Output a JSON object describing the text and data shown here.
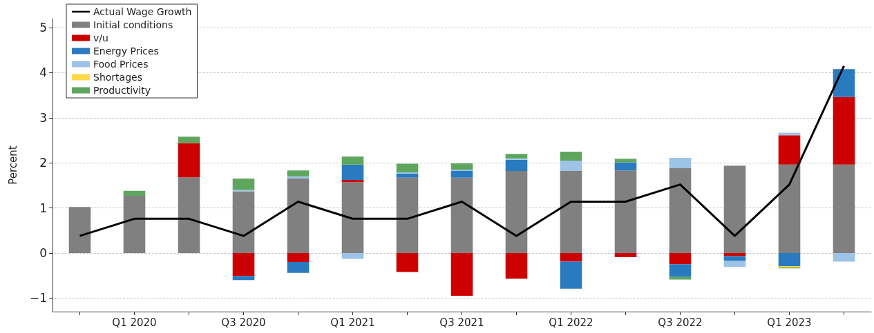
{
  "chart_data": {
    "type": "bar",
    "stacked": true,
    "ylabel": "Percent",
    "categories": [
      null,
      "Q1 2020",
      null,
      "Q3 2020",
      null,
      "Q1 2021",
      null,
      "Q3 2021",
      null,
      "Q1 2022",
      null,
      "Q3 2022",
      null,
      "Q1 2023",
      null
    ],
    "series": [
      {
        "name": "Actual Wage Growth",
        "type": "line",
        "color": "#000000",
        "values": [
          0.38,
          0.76,
          0.76,
          0.38,
          1.14,
          0.76,
          0.76,
          1.14,
          0.38,
          1.14,
          1.14,
          1.52,
          0.38,
          1.52,
          4.15
        ]
      },
      {
        "name": "Initial conditions",
        "color": "#808080",
        "values": [
          1.02,
          1.27,
          1.68,
          1.37,
          1.65,
          1.57,
          1.67,
          1.67,
          1.82,
          1.82,
          1.83,
          1.88,
          1.94,
          1.96,
          1.96
        ]
      },
      {
        "name": "v/u",
        "color": "#cc0000",
        "values": [
          0,
          0,
          0.76,
          -0.51,
          -0.2,
          0.05,
          -0.42,
          -0.95,
          -0.57,
          -0.19,
          -0.09,
          -0.25,
          -0.07,
          0.65,
          1.5
        ]
      },
      {
        "name": "Energy Prices",
        "color": "#2a7abf",
        "values": [
          0,
          0,
          0,
          -0.09,
          -0.24,
          0.34,
          0.09,
          0.15,
          0.25,
          -0.6,
          0.18,
          -0.28,
          -0.1,
          -0.29,
          0.62
        ]
      },
      {
        "name": "Food Prices",
        "color": "#9dc3e6",
        "values": [
          0,
          0,
          0,
          0.03,
          0.05,
          -0.13,
          0.03,
          0.03,
          0.03,
          0.23,
          0,
          0.23,
          -0.14,
          0.06,
          -0.19
        ]
      },
      {
        "name": "Shortages",
        "color": "#ffd94a",
        "values": [
          0,
          0,
          0,
          0,
          0,
          0,
          0,
          0,
          0,
          0,
          0,
          0,
          0,
          -0.03,
          0
        ]
      },
      {
        "name": "Productivity",
        "color": "#5ea65e",
        "values": [
          0,
          0.11,
          0.14,
          0.25,
          0.13,
          0.18,
          0.19,
          0.14,
          0.1,
          0.2,
          0.08,
          -0.06,
          0,
          -0.02,
          0
        ]
      }
    ],
    "ylim": [
      -1.3,
      5.2
    ],
    "yticks": [
      {
        "value": -1,
        "label": "−1"
      },
      0,
      1,
      2,
      3,
      4,
      5
    ],
    "grid": "y",
    "legend": "top left",
    "marker": "none",
    "line_style": "solid"
  }
}
